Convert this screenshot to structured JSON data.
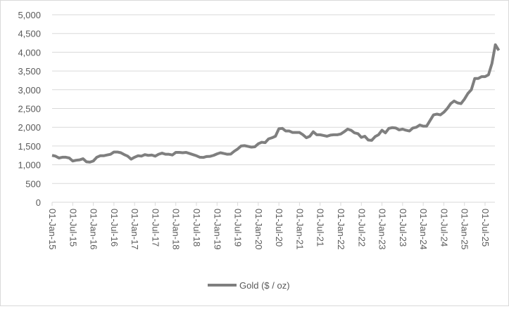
{
  "chart_data": {
    "type": "line",
    "title": "",
    "xlabel": "",
    "ylabel": "",
    "ylim": [
      0,
      5000
    ],
    "y_ticks": [
      "0",
      "500",
      "1,000",
      "1,500",
      "2,000",
      "2,500",
      "3,000",
      "3,500",
      "4,000",
      "4,500",
      "5,000"
    ],
    "x_tick_labels": [
      "01-Jan-15",
      "01-Jul-15",
      "01-Jan-16",
      "01-Jul-16",
      "01-Jan-17",
      "01-Jul-17",
      "01-Jan-18",
      "01-Jul-18",
      "01-Jan-19",
      "01-Jul-19",
      "01-Jan-20",
      "01-Jul-20",
      "01-Jan-21",
      "01-Jul-21",
      "01-Jan-22",
      "01-Jul-22",
      "01-Jan-23",
      "01-Jul-23",
      "01-Jan-24",
      "01-Jul-24",
      "01-Jan-25",
      "01-Jul-25"
    ],
    "grid": true,
    "legend_position": "bottom",
    "series": [
      {
        "name": "Gold ($ / oz)",
        "color": "#7f7f7f",
        "x_start": "2015-01",
        "x_step": "1 month",
        "values": [
          1250,
          1230,
          1180,
          1200,
          1200,
          1180,
          1100,
          1120,
          1130,
          1160,
          1080,
          1070,
          1100,
          1200,
          1240,
          1240,
          1260,
          1280,
          1340,
          1340,
          1320,
          1270,
          1230,
          1150,
          1200,
          1240,
          1230,
          1270,
          1250,
          1260,
          1230,
          1280,
          1310,
          1280,
          1280,
          1260,
          1330,
          1330,
          1320,
          1330,
          1300,
          1270,
          1240,
          1200,
          1195,
          1220,
          1225,
          1250,
          1290,
          1320,
          1300,
          1280,
          1285,
          1360,
          1420,
          1500,
          1510,
          1490,
          1470,
          1480,
          1560,
          1600,
          1590,
          1690,
          1720,
          1760,
          1960,
          1970,
          1900,
          1900,
          1860,
          1860,
          1860,
          1800,
          1720,
          1760,
          1880,
          1800,
          1800,
          1780,
          1760,
          1790,
          1800,
          1800,
          1820,
          1880,
          1950,
          1920,
          1850,
          1830,
          1730,
          1760,
          1660,
          1650,
          1750,
          1800,
          1920,
          1850,
          1970,
          1990,
          1980,
          1930,
          1950,
          1920,
          1900,
          1980,
          2000,
          2060,
          2030,
          2030,
          2180,
          2330,
          2350,
          2330,
          2400,
          2500,
          2630,
          2700,
          2650,
          2630,
          2750,
          2900,
          3000,
          3300,
          3300,
          3350,
          3350,
          3400,
          3700,
          4200,
          4050
        ]
      }
    ]
  }
}
